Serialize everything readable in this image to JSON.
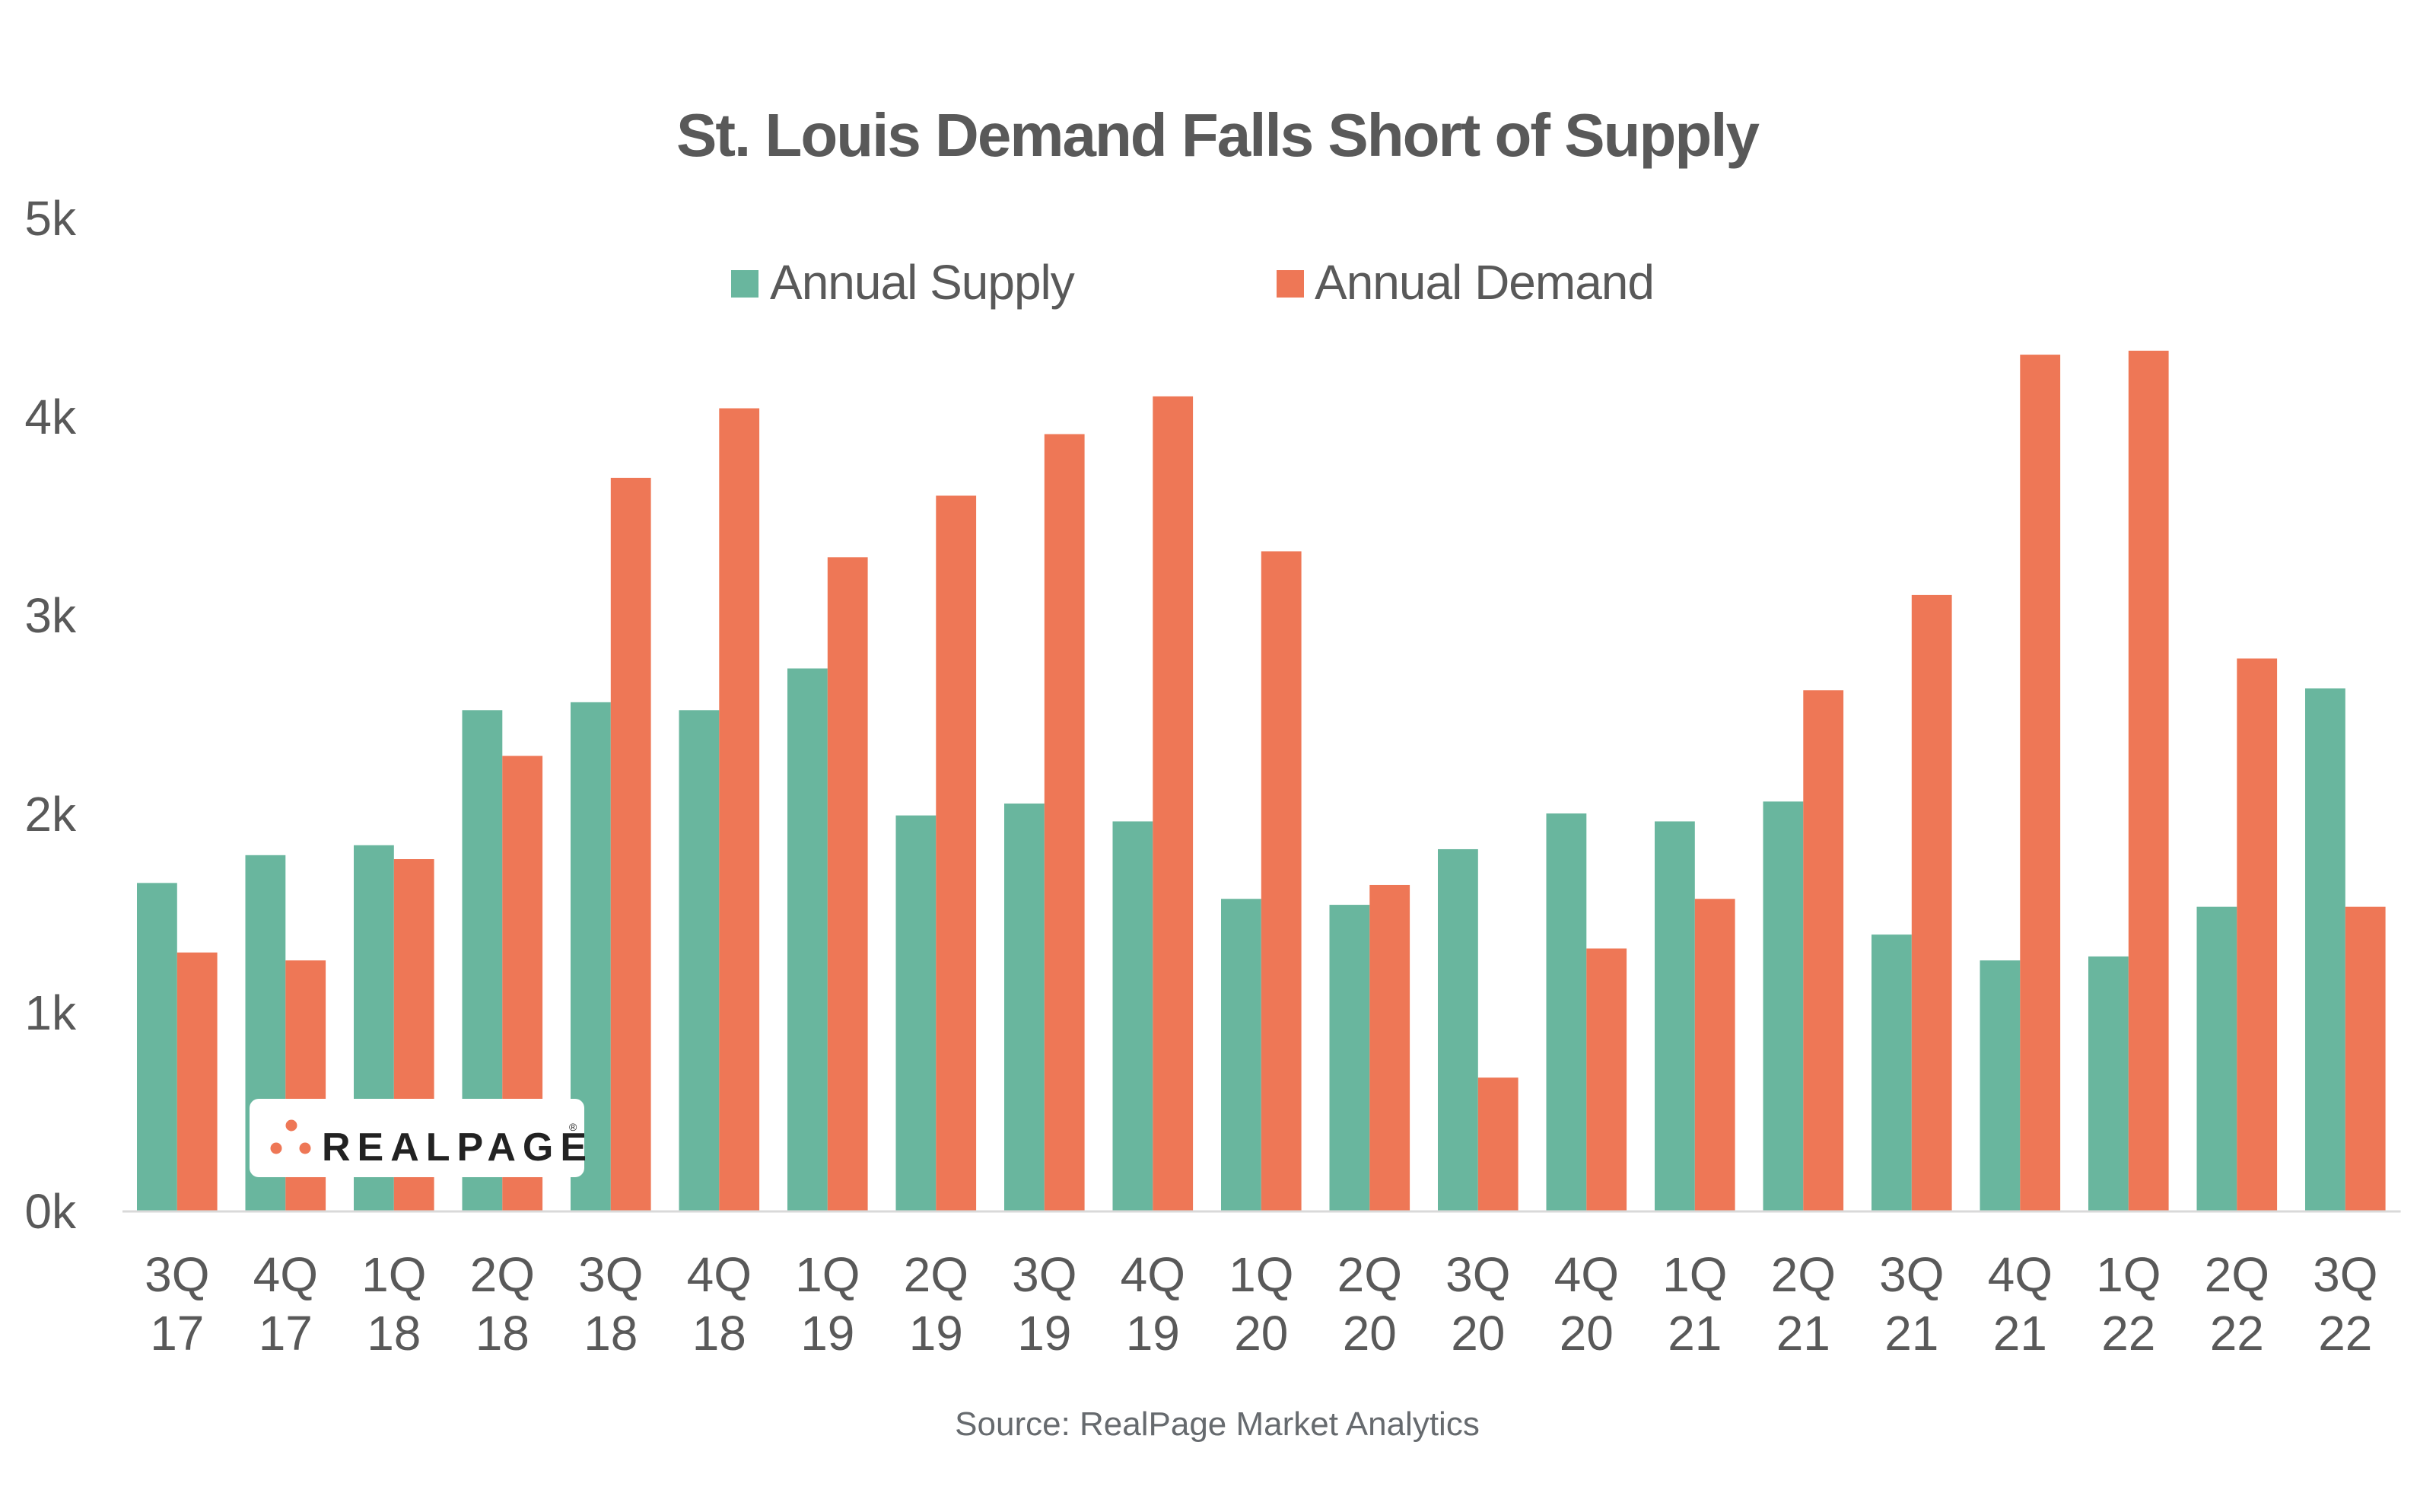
{
  "chart_data": {
    "type": "bar",
    "title": "St. Louis Demand Falls Short of Supply",
    "xlabel": "",
    "ylabel": "",
    "ylim": [
      0,
      5000
    ],
    "yticks": [
      0,
      1000,
      2000,
      3000,
      4000,
      5000
    ],
    "ytick_labels": [
      "0k",
      "1k",
      "2k",
      "3k",
      "4k",
      "5k"
    ],
    "grid": false,
    "legend_position": "top-center",
    "categories": [
      [
        "3Q",
        "17"
      ],
      [
        "4Q",
        "17"
      ],
      [
        "1Q",
        "18"
      ],
      [
        "2Q",
        "18"
      ],
      [
        "3Q",
        "18"
      ],
      [
        "4Q",
        "18"
      ],
      [
        "1Q",
        "19"
      ],
      [
        "2Q",
        "19"
      ],
      [
        "3Q",
        "19"
      ],
      [
        "4Q",
        "19"
      ],
      [
        "1Q",
        "20"
      ],
      [
        "2Q",
        "20"
      ],
      [
        "3Q",
        "20"
      ],
      [
        "4Q",
        "20"
      ],
      [
        "1Q",
        "21"
      ],
      [
        "2Q",
        "21"
      ],
      [
        "3Q",
        "21"
      ],
      [
        "4Q",
        "21"
      ],
      [
        "1Q",
        "22"
      ],
      [
        "2Q",
        "22"
      ],
      [
        "3Q",
        "22"
      ]
    ],
    "series": [
      {
        "name": "Annual Supply",
        "color": "#69B69E",
        "values": [
          1650,
          1790,
          1840,
          2520,
          2560,
          2520,
          2730,
          1990,
          2050,
          1960,
          1570,
          1540,
          1820,
          2000,
          1960,
          2060,
          1390,
          1260,
          1280,
          1530,
          2630
        ]
      },
      {
        "name": "Annual Demand",
        "color": "#EE7756",
        "values": [
          1300,
          1260,
          1770,
          2290,
          3690,
          4040,
          3290,
          3600,
          3910,
          4100,
          3320,
          1640,
          670,
          1320,
          1570,
          2620,
          3100,
          4310,
          4330,
          2780,
          1530
        ]
      }
    ],
    "source": "Source: RealPage Market Analytics"
  },
  "logo": {
    "text": "REALPAGE",
    "registered": "®",
    "accent_color": "#EE7756"
  },
  "colors": {
    "text": "#595959",
    "axis_line": "#d9d9d9"
  }
}
